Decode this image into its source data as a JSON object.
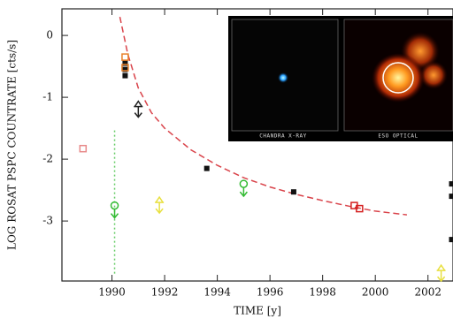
{
  "chart_data": {
    "type": "scatter",
    "x_label": "TIME [y]",
    "y_label": "LOG ROSAT PSPC COUNTRATE [cts/s]",
    "xlim": [
      1988.1,
      2002.95
    ],
    "ylim": [
      -3.97,
      0.43
    ],
    "xticks": [
      1990,
      1992,
      1994,
      1996,
      1998,
      2000,
      2002
    ],
    "yticks": [
      -3,
      -2,
      -1,
      0
    ],
    "inset": {
      "labels": [
        "CHANDRA X-RAY",
        "ESO OPTICAL"
      ]
    },
    "series": [
      {
        "style": "dashed-line",
        "color": "#d9434a",
        "x": [
          1990.3,
          1990.6,
          1991,
          1991.5,
          1992,
          1993,
          1994,
          1995,
          1996,
          1997,
          1998,
          1999,
          2000,
          2001.2
        ],
        "values": [
          0.3,
          -0.3,
          -0.85,
          -1.25,
          -1.5,
          -1.85,
          -2.1,
          -2.3,
          -2.45,
          -2.57,
          -2.67,
          -2.76,
          -2.84,
          -2.9
        ]
      },
      {
        "style": "dotted-line",
        "color": "#66cc66",
        "x": [
          1990.1,
          1990.1
        ],
        "values": [
          -3.85,
          -1.5
        ]
      },
      {
        "style": "square",
        "color": "#111111",
        "x": [
          1990.5,
          1990.5,
          1990.5,
          1993.6,
          1996.9,
          2002.9,
          2002.9,
          2002.9
        ],
        "values": [
          -0.45,
          -0.55,
          -0.65,
          -2.15,
          -2.53,
          -2.4,
          -2.6,
          -3.3
        ]
      },
      {
        "style": "square-open",
        "color": "#e8802a",
        "x": [
          1990.5,
          1990.5
        ],
        "values": [
          -0.35,
          -0.52
        ]
      },
      {
        "style": "square-open",
        "color": "#d42020",
        "x": [
          1999.2,
          1999.4
        ],
        "values": [
          -2.75,
          -2.8
        ]
      },
      {
        "style": "square-open",
        "color": "#e88a8a",
        "x": [
          1988.9
        ],
        "values": [
          -1.83
        ]
      },
      {
        "style": "circle-limit",
        "color": "#33bb33",
        "x": [
          1990.1,
          1995.0
        ],
        "values": [
          -2.75,
          -2.4
        ]
      },
      {
        "style": "arrow-limit",
        "color": "#e8e040",
        "x": [
          1991.8,
          2002.5
        ],
        "values": [
          -2.7,
          -3.8
        ]
      },
      {
        "style": "arrow-limit",
        "color": "#222222",
        "x": [
          1991.0
        ],
        "values": [
          -1.15
        ]
      }
    ]
  }
}
